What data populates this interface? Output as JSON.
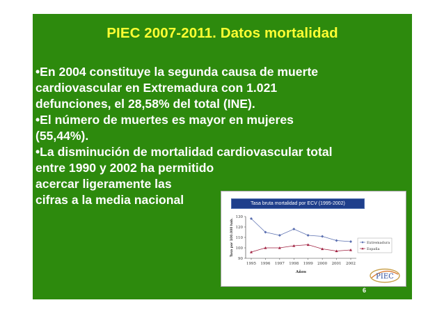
{
  "slide": {
    "title": "PIEC 2007-2011. Datos mortalidad",
    "page_number": "6",
    "bullet_lines": [
      "•En 2004 constituye la segunda causa de muerte",
      "cardiovascular en Extremadura con 1.021",
      "defunciones, el 28,58% del total (INE).",
      "•El número de muertes es mayor en mujeres",
      "(55,44%).",
      "•La  disminución de mortalidad cardiovascular total",
      "entre 1990 y 2002 ha permitido",
      "acercar ligeramente las",
      "cifras a la media nacional"
    ],
    "logo_text": "PIEC"
  },
  "chart_data": {
    "type": "line",
    "title": "Tasa bruta mortalidad por ECV (1995-2002)",
    "xlabel": "Años",
    "ylabel": "Tasa por 100.000 hab.",
    "x": [
      "1995",
      "1996",
      "1997",
      "1998",
      "1999",
      "2000",
      "2001",
      "2002"
    ],
    "ylim": [
      90,
      130
    ],
    "yticks": [
      90,
      100,
      110,
      120,
      130
    ],
    "series": [
      {
        "name": "Extremadura",
        "values": [
          128,
          115,
          112,
          118,
          112,
          111,
          107,
          106
        ],
        "color": "#5a6fb0",
        "marker": "diamond"
      },
      {
        "name": "España",
        "values": [
          96,
          100,
          100,
          102,
          103,
          99,
          97,
          98
        ],
        "color": "#a02040",
        "marker": "triangle"
      }
    ],
    "legend_position": "right",
    "grid": false
  }
}
